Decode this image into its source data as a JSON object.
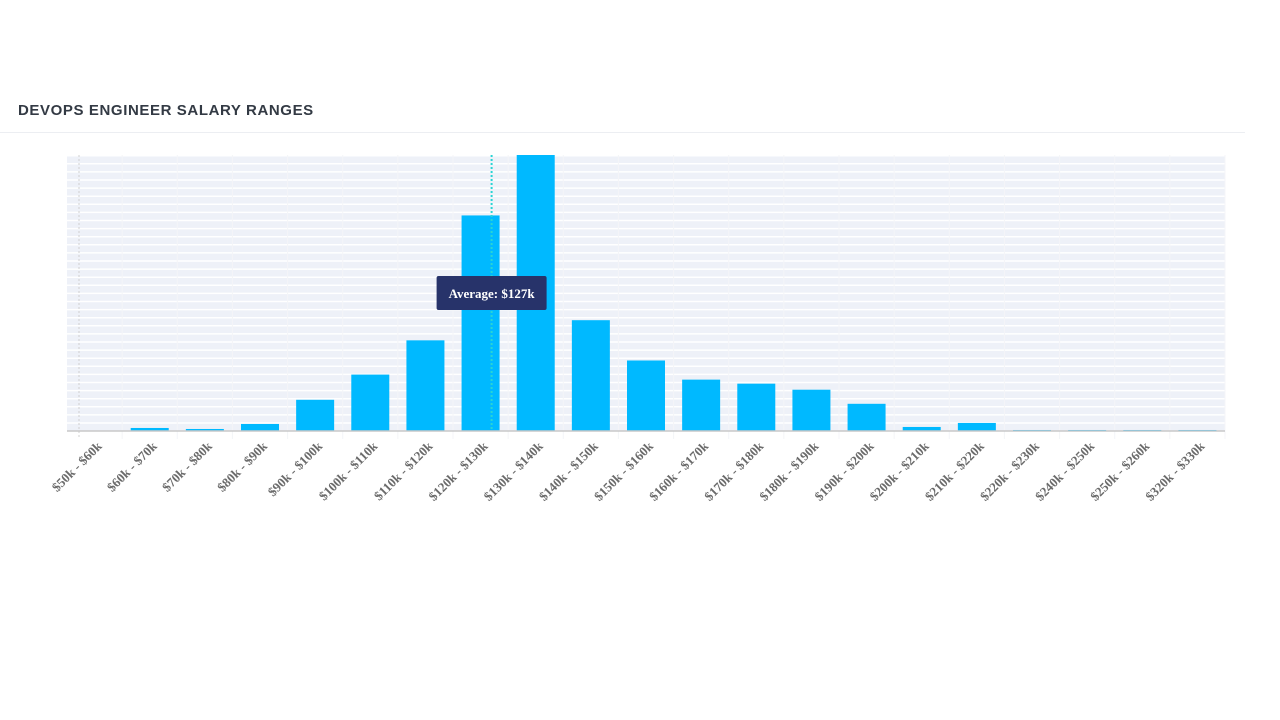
{
  "header": {
    "title": "DEVOPS ENGINEER SALARY RANGES"
  },
  "chart_data": {
    "type": "bar",
    "title": "DEVOPS ENGINEER SALARY RANGES",
    "xlabel": "",
    "ylabel": "",
    "categories": [
      "$50k - $60k",
      "$60k - $70k",
      "$70k - $80k",
      "$80k - $90k",
      "$90k - $100k",
      "$100k - $110k",
      "$110k - $120k",
      "$120k - $130k",
      "$130k - $140k",
      "$140k - $150k",
      "$150k - $160k",
      "$160k - $170k",
      "$170k - $180k",
      "$180k - $190k",
      "$190k - $200k",
      "$200k - $210k",
      "$210k - $220k",
      "$220k - $230k",
      "$240k - $250k",
      "$250k - $260k",
      "$320k - $330k"
    ],
    "values": [
      0,
      3,
      2,
      7,
      31,
      56,
      90,
      214,
      274,
      110,
      70,
      51,
      47,
      41,
      27,
      4,
      8,
      1,
      1,
      1,
      1
    ],
    "ylim": [
      0,
      274
    ],
    "grid": true,
    "average": {
      "value_k": 127,
      "label": "Average: $127k"
    },
    "colors": {
      "bar": "#00b9ff",
      "plot_bg": "#eef1f8",
      "avg_line": "#2ad4d4",
      "tooltip_bg": "#27336a"
    }
  }
}
